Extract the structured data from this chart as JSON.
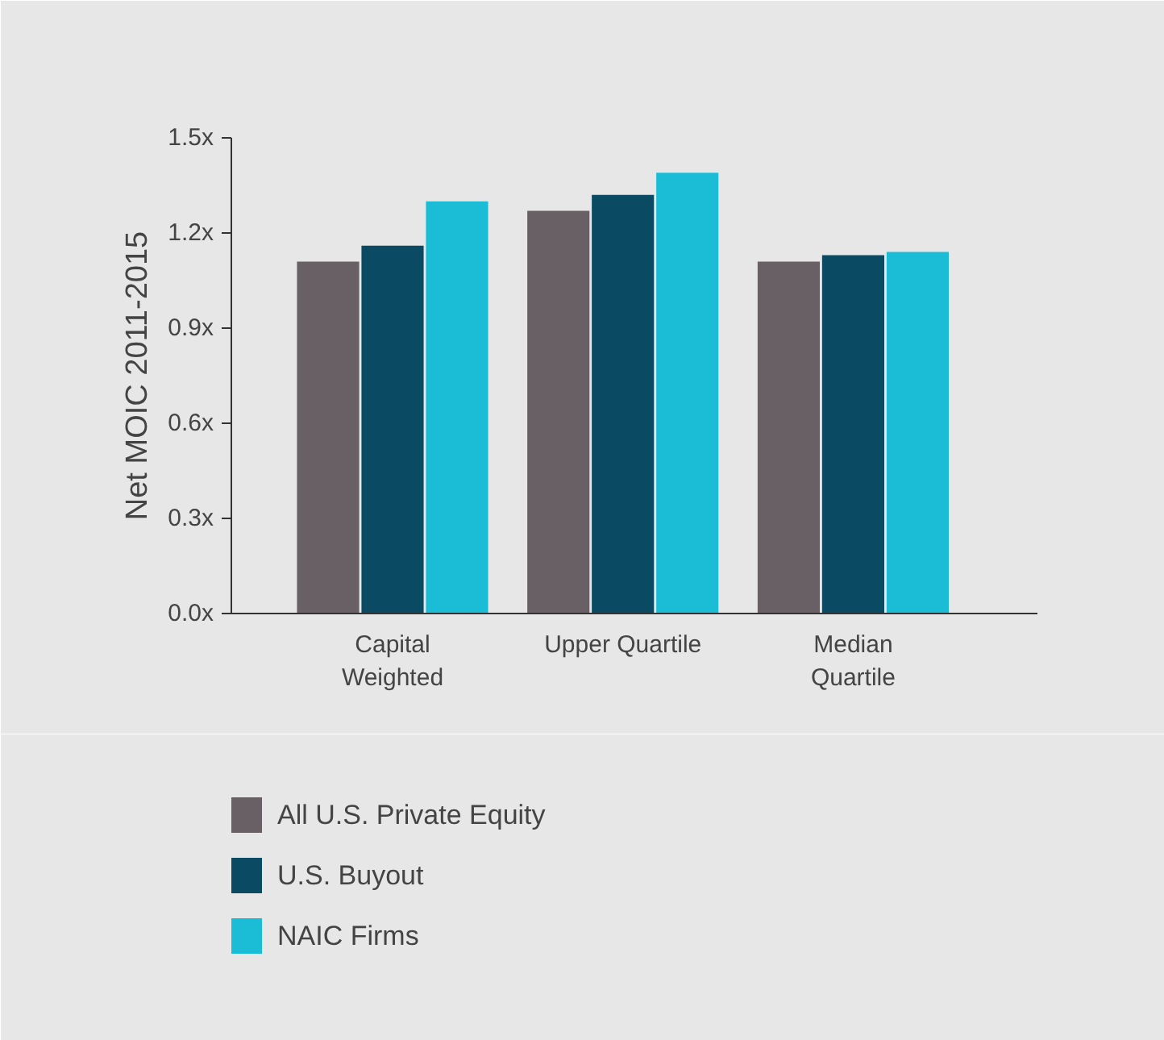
{
  "chart_data": {
    "type": "bar",
    "ylabel": "Net MOIC 2011-2015",
    "categories": [
      "Capital Weighted",
      "Upper Quartile",
      "Median Quartile"
    ],
    "series": [
      {
        "name": "All U.S. Private Equity",
        "color": "#686064",
        "values": [
          1.11,
          1.27,
          1.11
        ]
      },
      {
        "name": "U.S. Buyout",
        "color": "#0b4a63",
        "values": [
          1.16,
          1.32,
          1.13
        ]
      },
      {
        "name": "NAIC Firms",
        "color": "#1bbcd6",
        "values": [
          1.3,
          1.39,
          1.14
        ]
      }
    ],
    "ylim": [
      0,
      1.5
    ],
    "yticks": [
      {
        "value": 0,
        "label": "0.0x"
      },
      {
        "value": 0.3,
        "label": "0.3x"
      },
      {
        "value": 0.6,
        "label": "0.6x"
      },
      {
        "value": 0.9,
        "label": "0.9x"
      },
      {
        "value": 1.2,
        "label": "1.2x"
      },
      {
        "value": 1.5,
        "label": "1.5x"
      }
    ],
    "grid": false,
    "legend": "bottom"
  }
}
